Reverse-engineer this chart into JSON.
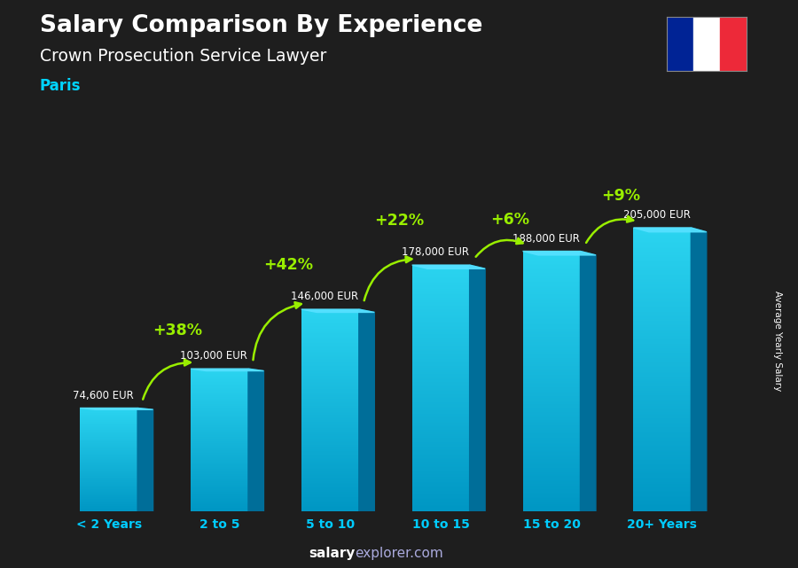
{
  "title": "Salary Comparison By Experience",
  "subtitle": "Crown Prosecution Service Lawyer",
  "city": "Paris",
  "ylabel": "Average Yearly Salary",
  "categories": [
    "< 2 Years",
    "2 to 5",
    "5 to 10",
    "10 to 15",
    "15 to 20",
    "20+ Years"
  ],
  "values": [
    74600,
    103000,
    146000,
    178000,
    188000,
    205000
  ],
  "labels": [
    "74,600 EUR",
    "103,000 EUR",
    "146,000 EUR",
    "178,000 EUR",
    "188,000 EUR",
    "205,000 EUR"
  ],
  "pct_changes": [
    "+38%",
    "+42%",
    "+22%",
    "+6%",
    "+9%"
  ],
  "bar_front_top": "#2bd4f0",
  "bar_front_bottom": "#0097c4",
  "bar_side_color": "#006e99",
  "bar_top_color": "#55e0ff",
  "bg_color": "#1e1e1e",
  "title_color": "#ffffff",
  "subtitle_color": "#ffffff",
  "city_color": "#00d4ff",
  "label_color": "#ffffff",
  "pct_color": "#99ee00",
  "tick_color": "#00ccff",
  "footer_salary_color": "#ffffff",
  "footer_explorer_color": "#aaaadd",
  "flag_blue": "#002395",
  "flag_white": "#ffffff",
  "flag_red": "#ED2939",
  "max_val": 230000,
  "bar_width": 0.52,
  "bar_depth": 0.14
}
